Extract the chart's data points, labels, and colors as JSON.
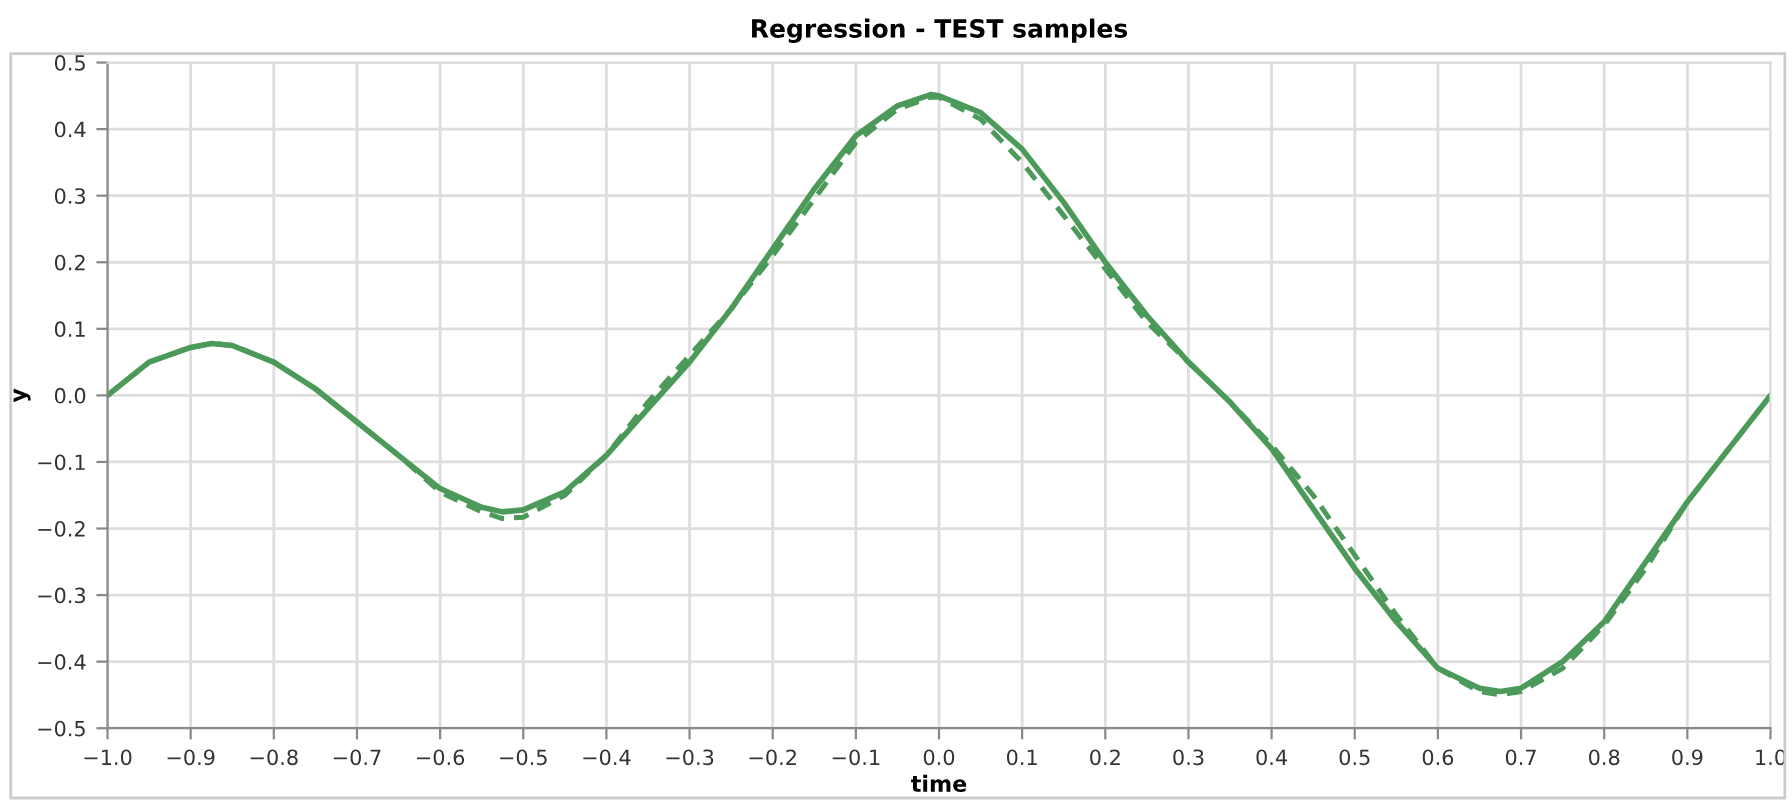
{
  "chart_data": {
    "type": "line",
    "title": "Regression - TEST samples",
    "xlabel": "time",
    "ylabel": "y",
    "xlim": [
      -1.0,
      1.0
    ],
    "ylim": [
      -0.5,
      0.5
    ],
    "xticks": [
      {
        "value": -1.0,
        "label": "−1.0"
      },
      {
        "value": -0.9,
        "label": "−0.9"
      },
      {
        "value": -0.8,
        "label": "−0.8"
      },
      {
        "value": -0.7,
        "label": "−0.7"
      },
      {
        "value": -0.6,
        "label": "−0.6"
      },
      {
        "value": -0.5,
        "label": "−0.5"
      },
      {
        "value": -0.4,
        "label": "−0.4"
      },
      {
        "value": -0.3,
        "label": "−0.3"
      },
      {
        "value": -0.2,
        "label": "−0.2"
      },
      {
        "value": -0.1,
        "label": "−0.1"
      },
      {
        "value": 0.0,
        "label": "0.0"
      },
      {
        "value": 0.1,
        "label": "0.1"
      },
      {
        "value": 0.2,
        "label": "0.2"
      },
      {
        "value": 0.3,
        "label": "0.3"
      },
      {
        "value": 0.4,
        "label": "0.4"
      },
      {
        "value": 0.5,
        "label": "0.5"
      },
      {
        "value": 0.6,
        "label": "0.6"
      },
      {
        "value": 0.7,
        "label": "0.7"
      },
      {
        "value": 0.8,
        "label": "0.8"
      },
      {
        "value": 0.9,
        "label": "0.9"
      },
      {
        "value": 1.0,
        "label": "1.0"
      }
    ],
    "yticks": [
      {
        "value": -0.5,
        "label": "−0.5"
      },
      {
        "value": -0.4,
        "label": "−0.4"
      },
      {
        "value": -0.3,
        "label": "−0.3"
      },
      {
        "value": -0.2,
        "label": "−0.2"
      },
      {
        "value": -0.1,
        "label": "−0.1"
      },
      {
        "value": 0.0,
        "label": "0.0"
      },
      {
        "value": 0.1,
        "label": "0.1"
      },
      {
        "value": 0.2,
        "label": "0.2"
      },
      {
        "value": 0.3,
        "label": "0.3"
      },
      {
        "value": 0.4,
        "label": "0.4"
      },
      {
        "value": 0.5,
        "label": "0.5"
      }
    ],
    "grid": true,
    "series": [
      {
        "color": "#4c9a5a",
        "line_style": "solid",
        "x": [
          -1.0,
          -0.95,
          -0.9,
          -0.875,
          -0.85,
          -0.8,
          -0.75,
          -0.7,
          -0.65,
          -0.6,
          -0.55,
          -0.525,
          -0.5,
          -0.45,
          -0.4,
          -0.35,
          -0.3,
          -0.25,
          -0.2,
          -0.15,
          -0.1,
          -0.05,
          -0.01,
          0.0,
          0.05,
          0.1,
          0.15,
          0.2,
          0.25,
          0.3,
          0.35,
          0.4,
          0.45,
          0.5,
          0.55,
          0.6,
          0.65,
          0.675,
          0.7,
          0.75,
          0.8,
          0.85,
          0.9,
          0.95,
          1.0
        ],
        "values": [
          0.0,
          0.05,
          0.072,
          0.078,
          0.075,
          0.05,
          0.01,
          -0.04,
          -0.09,
          -0.14,
          -0.168,
          -0.175,
          -0.172,
          -0.145,
          -0.09,
          -0.02,
          0.05,
          0.13,
          0.22,
          0.31,
          0.39,
          0.435,
          0.452,
          0.45,
          0.425,
          0.37,
          0.29,
          0.2,
          0.12,
          0.05,
          -0.01,
          -0.08,
          -0.17,
          -0.26,
          -0.34,
          -0.41,
          -0.44,
          -0.445,
          -0.44,
          -0.4,
          -0.34,
          -0.25,
          -0.16,
          -0.08,
          0.0
        ]
      },
      {
        "color": "#4c9a5a",
        "line_style": "dashed",
        "x": [
          -1.0,
          -0.95,
          -0.9,
          -0.875,
          -0.85,
          -0.8,
          -0.75,
          -0.7,
          -0.65,
          -0.6,
          -0.55,
          -0.525,
          -0.5,
          -0.45,
          -0.4,
          -0.35,
          -0.3,
          -0.25,
          -0.2,
          -0.15,
          -0.1,
          -0.05,
          -0.01,
          0.0,
          0.05,
          0.1,
          0.15,
          0.2,
          0.25,
          0.3,
          0.35,
          0.4,
          0.45,
          0.5,
          0.55,
          0.6,
          0.65,
          0.675,
          0.7,
          0.75,
          0.8,
          0.85,
          0.9,
          0.95,
          1.0
        ],
        "values": [
          0.0,
          0.05,
          0.072,
          0.078,
          0.075,
          0.05,
          0.01,
          -0.04,
          -0.09,
          -0.145,
          -0.175,
          -0.185,
          -0.183,
          -0.15,
          -0.09,
          -0.01,
          0.06,
          0.13,
          0.21,
          0.295,
          0.38,
          0.43,
          0.448,
          0.448,
          0.415,
          0.35,
          0.27,
          0.19,
          0.11,
          0.05,
          -0.01,
          -0.075,
          -0.15,
          -0.24,
          -0.33,
          -0.41,
          -0.445,
          -0.45,
          -0.445,
          -0.41,
          -0.345,
          -0.26,
          -0.16,
          -0.08,
          0.0
        ]
      }
    ]
  }
}
